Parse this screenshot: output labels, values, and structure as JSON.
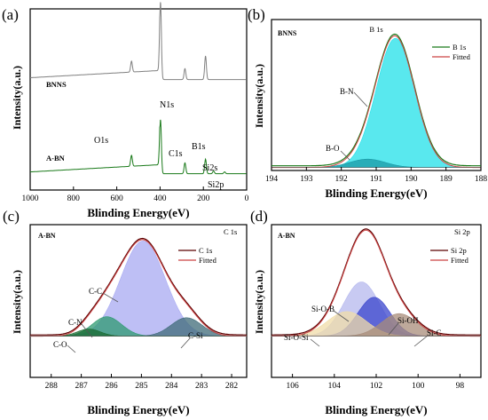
{
  "chart_data": [
    {
      "panel_label": "(a)",
      "type": "line",
      "xlabel": "Blinding Energy(eV)",
      "ylabel": "Intensity(a.u.)",
      "xlim": [
        1000,
        0
      ],
      "ylim": [
        0,
        1
      ],
      "x_ticks": [
        1000,
        800,
        600,
        400,
        200,
        0
      ],
      "sample_labels": [
        "BNNS",
        "A-BN"
      ],
      "annotations": [
        "N1s",
        "O1s",
        "C1s",
        "B1s",
        "Si2s",
        "Si2p"
      ],
      "series": [
        {
          "name": "BNNS",
          "color": "#808080",
          "baseline": 0.62,
          "slope": 0.05,
          "peaks": [
            {
              "center": 532,
              "height": 0.06,
              "width": 4
            },
            {
              "center": 398,
              "height": 0.43,
              "width": 4
            },
            {
              "center": 285,
              "height": 0.06,
              "width": 4
            },
            {
              "center": 190,
              "height": 0.13,
              "width": 4
            }
          ]
        },
        {
          "name": "A-BN",
          "color": "#1a7a1a",
          "baseline": 0.1,
          "slope": 0.05,
          "peaks": [
            {
              "center": 532,
              "height": 0.06,
              "width": 4
            },
            {
              "center": 398,
              "height": 0.3,
              "width": 4
            },
            {
              "center": 285,
              "height": 0.06,
              "width": 4
            },
            {
              "center": 190,
              "height": 0.08,
              "width": 4
            },
            {
              "center": 153,
              "height": 0.015,
              "width": 4
            },
            {
              "center": 102,
              "height": 0.01,
              "width": 4
            }
          ]
        }
      ]
    },
    {
      "panel_label": "(b)",
      "type": "area",
      "title": "B 1s",
      "sample_label": "BNNS",
      "xlabel": "Blinding Energy(eV)",
      "ylabel": "Intensity(a.u.)",
      "xlim": [
        194,
        188
      ],
      "ylim": [
        0,
        1
      ],
      "x_ticks": [
        194,
        193,
        192,
        191,
        190,
        189,
        188
      ],
      "legend": [
        "B 1s",
        "Fitted"
      ],
      "legend_position": "top-right",
      "components": [
        {
          "name": "B-N",
          "center": 190.45,
          "fwhm": 1.3,
          "height": 0.93,
          "color": "#22e0e8"
        },
        {
          "name": "B-O",
          "center": 191.25,
          "fwhm": 1.2,
          "height": 0.06,
          "color": "#1a9aa6"
        }
      ],
      "envelope_color": "#1a7a1a",
      "fitted_color": "#cc4444"
    },
    {
      "panel_label": "(c)",
      "type": "area",
      "title": "C 1s",
      "sample_label": "A-BN",
      "xlabel": "Blinding Energy(eV)",
      "ylabel": "Intensity(a.u.)",
      "xlim": [
        288.7,
        281.5
      ],
      "ylim": [
        0,
        1
      ],
      "x_ticks": [
        288,
        287,
        286,
        285,
        284,
        283,
        282
      ],
      "legend": [
        "C 1s",
        "Fitted"
      ],
      "legend_position": "top-right",
      "components": [
        {
          "name": "C-C",
          "center": 284.95,
          "fwhm": 1.75,
          "height": 0.93,
          "color": "#a8aaf2"
        },
        {
          "name": "C-N",
          "center": 286.15,
          "fwhm": 1.15,
          "height": 0.19,
          "color": "#2d9a70"
        },
        {
          "name": "C-O",
          "center": 286.75,
          "fwhm": 0.9,
          "height": 0.07,
          "color": "#1a6a30"
        },
        {
          "name": "C-Si",
          "center": 283.5,
          "fwhm": 1.2,
          "height": 0.18,
          "color": "#3f6b78"
        }
      ],
      "envelope_color": "#5a0000",
      "fitted_color": "#cc4444"
    },
    {
      "panel_label": "(d)",
      "type": "area",
      "title": "Si 2p",
      "sample_label": "A-BN",
      "xlabel": "Blinding Energy(eV)",
      "ylabel": "Intensity(a.u.)",
      "xlim": [
        107,
        97
      ],
      "ylim": [
        0,
        1
      ],
      "x_ticks": [
        106,
        104,
        102,
        100,
        98
      ],
      "legend": [
        "Si 2p",
        "Fitted"
      ],
      "legend_position": "top-right",
      "components": [
        {
          "name": "Si-O-B",
          "center": 102.7,
          "fwhm": 2.0,
          "height": 0.53,
          "color": "#b5b8ee"
        },
        {
          "name": "Si-O-Si",
          "center": 103.4,
          "fwhm": 2.2,
          "height": 0.24,
          "color": "#f0dca8"
        },
        {
          "name": "Si-OH",
          "center": 102.1,
          "fwhm": 1.8,
          "height": 0.38,
          "color": "#3a44cc"
        },
        {
          "name": "Si-C",
          "center": 100.9,
          "fwhm": 2.0,
          "height": 0.22,
          "color": "#a88c7a"
        }
      ],
      "envelope_color": "#5a0000",
      "fitted_color": "#cc4444"
    }
  ]
}
